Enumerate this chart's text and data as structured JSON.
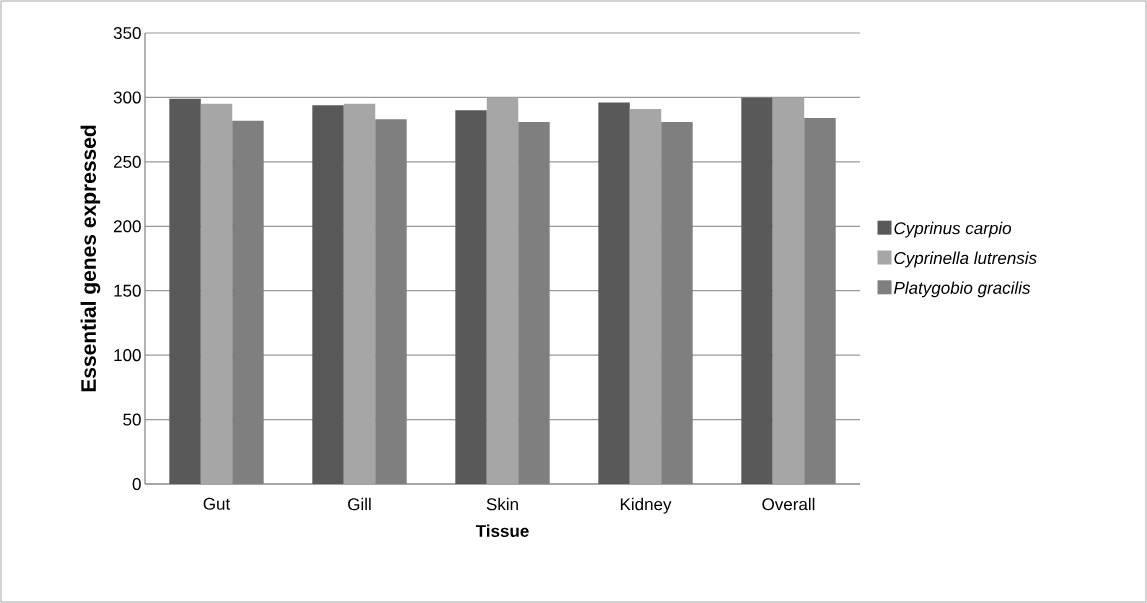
{
  "chart_data": {
    "type": "bar",
    "xlabel": "Tissue",
    "ylabel": "Essential genes expressed",
    "categories": [
      "Gut",
      "Gill",
      "Skin",
      "Kidney",
      "Overall"
    ],
    "series": [
      {
        "name": "Cyprinus carpio",
        "color": "#595959",
        "values": [
          299,
          294,
          290,
          296,
          300
        ]
      },
      {
        "name": "Cyprinella lutrensis",
        "color": "#a6a6a6",
        "values": [
          295,
          295,
          300,
          291,
          300
        ]
      },
      {
        "name": "Platygobio gracilis",
        "color": "#7f7f7f",
        "values": [
          282,
          283,
          281,
          281,
          284
        ]
      }
    ],
    "ylim": [
      0,
      350
    ],
    "yticks": [
      0,
      50,
      100,
      150,
      200,
      250,
      300,
      350
    ],
    "grid": "y",
    "legend": "right"
  }
}
